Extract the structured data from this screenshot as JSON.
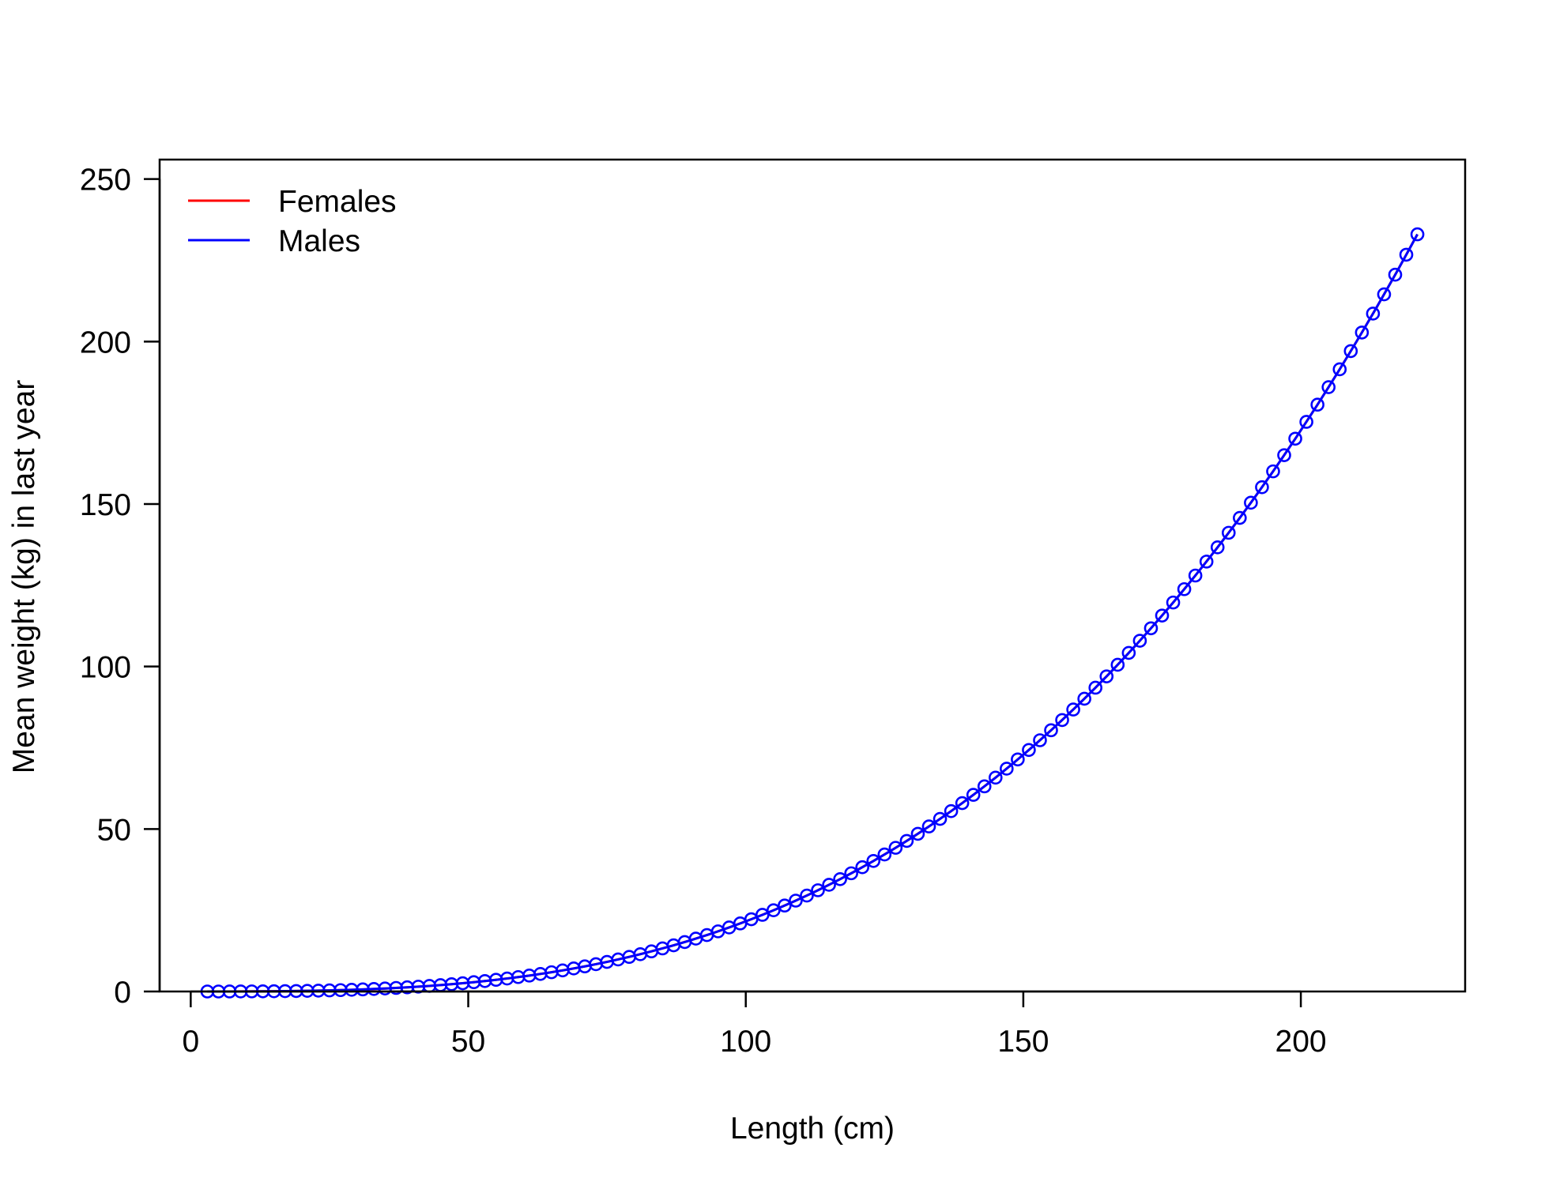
{
  "chart_data": {
    "type": "line",
    "title": "",
    "xlabel": "Length (cm)",
    "ylabel": "Mean weight (kg) in last year",
    "xlim": [
      -5.6,
      229.6
    ],
    "ylim": [
      0,
      256
    ],
    "x_ticks": [
      0,
      50,
      100,
      150,
      200
    ],
    "y_ticks": [
      0,
      50,
      100,
      150,
      200,
      250
    ],
    "grid": false,
    "legend_position": "top-left",
    "legend": [
      {
        "label": "Females",
        "color": "#ff0000"
      },
      {
        "label": "Males",
        "color": "#0000ff"
      }
    ],
    "series": [
      {
        "name": "Females",
        "color": "#ff0000",
        "markers": false,
        "x": [
          3,
          221
        ],
        "y": [
          0.001,
          233
        ]
      },
      {
        "name": "Males",
        "color": "#0000ff",
        "markers": true,
        "marker": "open-circle",
        "model": "y = 233 * (x / 221)^3, x from 3 to 221 step 2",
        "x_start": 3,
        "x_end": 221,
        "x_step": 2,
        "y_end": 233,
        "exponent": 3
      }
    ]
  }
}
